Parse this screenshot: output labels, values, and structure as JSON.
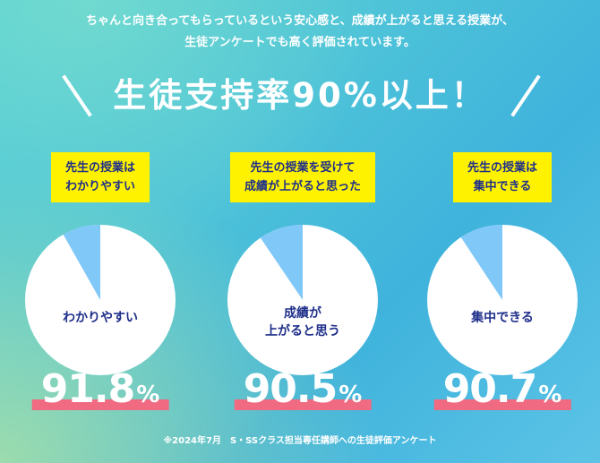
{
  "intro": {
    "line1": "ちゃんと向き合ってもらっているという安心感と、成績が上がると思える授業が、",
    "line2": "生徒アンケートでも高く評価されています。"
  },
  "headline": "生徒支持率90%以上！",
  "footnote": "※2024年7月　S・SSクラス担当専任講師への生徒評価アンケート",
  "colors": {
    "pie_main": "#ffffff",
    "pie_slice": "#7fc8f8",
    "label_bg": "#fff200",
    "label_text": "#1f2f8a",
    "underline": "#f06a82"
  },
  "chart_data": [
    {
      "type": "pie",
      "title": "先生の授業はわかりやすい",
      "title_lines": [
        "先生の授業は",
        "わかりやすい"
      ],
      "slices": [
        {
          "label": "わかりやすい",
          "value": 91.8
        },
        {
          "label": "",
          "value": 8.2
        }
      ],
      "caption_lines": [
        "わかりやすい"
      ],
      "percent_display": "91.8",
      "unit": "%"
    },
    {
      "type": "pie",
      "title": "先生の授業を受けて成績が上がると思った",
      "title_lines": [
        "先生の授業を受けて",
        "成績が上がると思った"
      ],
      "slices": [
        {
          "label": "成績が上がると思う",
          "value": 90.5
        },
        {
          "label": "",
          "value": 9.5
        }
      ],
      "caption_lines": [
        "成績が",
        "上がると思う"
      ],
      "percent_display": "90.5",
      "unit": "%"
    },
    {
      "type": "pie",
      "title": "先生の授業は集中できる",
      "title_lines": [
        "先生の授業は",
        "集中できる"
      ],
      "slices": [
        {
          "label": "集中できる",
          "value": 90.7
        },
        {
          "label": "",
          "value": 9.3
        }
      ],
      "caption_lines": [
        "集中できる"
      ],
      "percent_display": "90.7",
      "unit": "%"
    }
  ]
}
